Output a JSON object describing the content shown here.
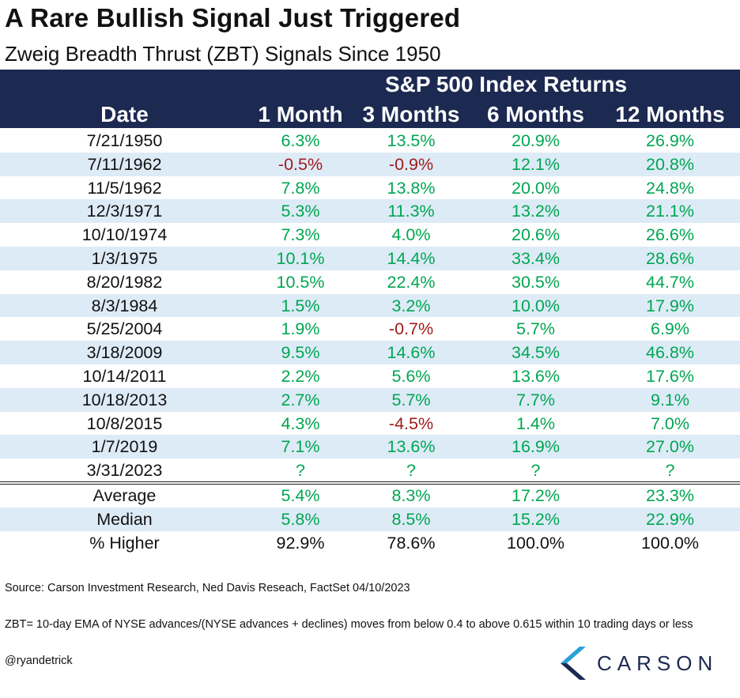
{
  "title": "A Rare Bullish Signal Just Triggered",
  "subtitle": "Zweig Breadth Thrust (ZBT) Signals Since 1950",
  "header": {
    "group_label": "S&P 500 Index Returns",
    "columns": [
      "Date",
      "1 Month",
      "3 Months",
      "6 Months",
      "12 Months"
    ]
  },
  "colors": {
    "header_bg": "#1c2951",
    "positive": "#00a651",
    "negative": "#a11a1a",
    "row_shade": "#ddebf7"
  },
  "chart_data": {
    "type": "table",
    "title": "A Rare Bullish Signal Just Triggered",
    "subtitle": "Zweig Breadth Thrust (ZBT) Signals Since 1950",
    "columns": [
      "Date",
      "1 Month",
      "3 Months",
      "6 Months",
      "12 Months"
    ],
    "rows": [
      [
        "7/21/1950",
        "6.3%",
        "13.5%",
        "20.9%",
        "26.9%"
      ],
      [
        "7/11/1962",
        "-0.5%",
        "-0.9%",
        "12.1%",
        "20.8%"
      ],
      [
        "11/5/1962",
        "7.8%",
        "13.8%",
        "20.0%",
        "24.8%"
      ],
      [
        "12/3/1971",
        "5.3%",
        "11.3%",
        "13.2%",
        "21.1%"
      ],
      [
        "10/10/1974",
        "7.3%",
        "4.0%",
        "20.6%",
        "26.6%"
      ],
      [
        "1/3/1975",
        "10.1%",
        "14.4%",
        "33.4%",
        "28.6%"
      ],
      [
        "8/20/1982",
        "10.5%",
        "22.4%",
        "30.5%",
        "44.7%"
      ],
      [
        "8/3/1984",
        "1.5%",
        "3.2%",
        "10.0%",
        "17.9%"
      ],
      [
        "5/25/2004",
        "1.9%",
        "-0.7%",
        "5.7%",
        "6.9%"
      ],
      [
        "3/18/2009",
        "9.5%",
        "14.6%",
        "34.5%",
        "46.8%"
      ],
      [
        "10/14/2011",
        "2.2%",
        "5.6%",
        "13.6%",
        "17.6%"
      ],
      [
        "10/18/2013",
        "2.7%",
        "5.7%",
        "7.7%",
        "9.1%"
      ],
      [
        "10/8/2015",
        "4.3%",
        "-4.5%",
        "1.4%",
        "7.0%"
      ],
      [
        "1/7/2019",
        "7.1%",
        "13.6%",
        "16.9%",
        "27.0%"
      ],
      [
        "3/31/2023",
        "?",
        "?",
        "?",
        "?"
      ]
    ],
    "summary": [
      [
        "Average",
        "5.4%",
        "8.3%",
        "17.2%",
        "23.3%"
      ],
      [
        "Median",
        "5.8%",
        "8.5%",
        "15.2%",
        "22.9%"
      ],
      [
        "% Higher",
        "92.9%",
        "78.6%",
        "100.0%",
        "100.0%"
      ]
    ]
  },
  "footer": {
    "source": "Source: Carson Investment Research, Ned Davis Reseach, FactSet 04/10/2023",
    "note": "ZBT= 10-day EMA of NYSE advances/(NYSE advances + declines) moves from below 0.4 to above 0.615 within 10 trading days or less",
    "handle": "@ryandetrick"
  },
  "logo": {
    "icon": "carson-chevron-icon",
    "text": "CARSON"
  }
}
